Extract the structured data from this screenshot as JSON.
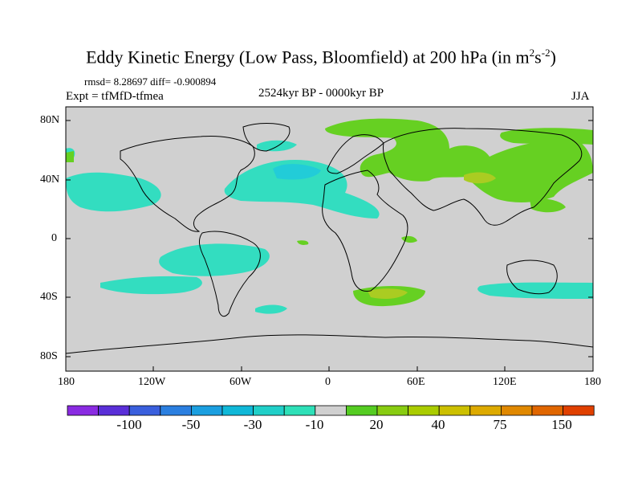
{
  "title": {
    "main": "Eddy Kinetic Energy (Low Pass, Bloomfield) at 200 hPa (in m",
    "sup1": "2",
    "mid": "s",
    "sup2": "-2",
    "end": ")"
  },
  "stats": "rmsd= 8.28697  diff= -0.900894",
  "experiment": "Expt = tfMfD-tfmea",
  "period": "2524kyr BP - 0000kyr BP",
  "season": "JJA",
  "lat_labels": [
    "80N",
    "40N",
    "0",
    "40S",
    "80S"
  ],
  "lon_labels": [
    "180",
    "120W",
    "60W",
    "0",
    "60E",
    "120E",
    "180"
  ],
  "colorbar": {
    "colors": [
      "#8a2be2",
      "#5a2fd8",
      "#3a5fdd",
      "#2b7fe0",
      "#1b9fe0",
      "#10b8d8",
      "#20cfc8",
      "#2ee0b8",
      "#d0d0d0",
      "#55cc22",
      "#88cc11",
      "#aacc00",
      "#ccc000",
      "#ddaa00",
      "#e08800",
      "#e06600",
      "#e04000"
    ],
    "labels": [
      "-100",
      "-50",
      "-30",
      "-10",
      "20",
      "40",
      "75",
      "150"
    ]
  },
  "map": {
    "background": "#d0d0d0",
    "cyan": "#33ddc0",
    "cyan_dark": "#22ccd8",
    "green": "#66d022",
    "yellow_green": "#aacc22"
  }
}
